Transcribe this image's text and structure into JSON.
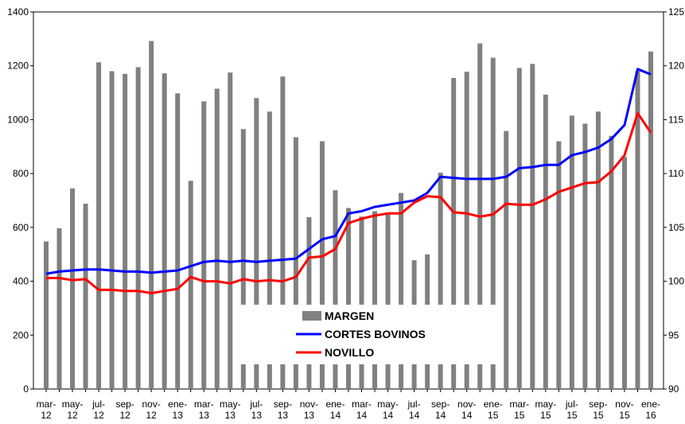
{
  "chart_data": {
    "type": "bar",
    "categories": [
      "mar-12",
      null,
      "may-12",
      null,
      "jul-12",
      null,
      "sep-12",
      null,
      "nov-12",
      null,
      "ene-13",
      null,
      "mar-13",
      null,
      "may-13",
      null,
      "jul-13",
      null,
      "sep-13",
      null,
      "nov-13",
      null,
      "ene-14",
      null,
      "mar-14",
      null,
      "may-14",
      null,
      "jul-14",
      null,
      "sep-14",
      null,
      "nov-14",
      null,
      "ene-15",
      null,
      "mar-15",
      null,
      "may-15",
      null,
      "jul-15",
      null,
      "sep-15",
      null,
      "nov-15",
      null,
      "ene-16"
    ],
    "series": [
      {
        "name": "MARGEN",
        "color": "#808080",
        "values": [
          548,
          597,
          745,
          688,
          1213,
          1180,
          1170,
          1195,
          1292,
          1172,
          1098,
          773,
          1068,
          1115,
          1175,
          965,
          1080,
          1030,
          1160,
          935,
          638,
          920,
          738,
          672,
          640,
          660,
          650,
          728,
          478,
          500,
          803,
          1155,
          1178,
          1283,
          1230,
          958,
          1192,
          1207,
          1093,
          920,
          1015,
          985,
          1030,
          940,
          862,
          1180,
          1253
        ]
      },
      {
        "name": "CORTES BOVINOS",
        "color": "#0000ff",
        "type": "line",
        "axis": "y2",
        "values": [
          100.7,
          100.9,
          101.0,
          101.1,
          101.1,
          101.0,
          100.9,
          100.9,
          100.8,
          100.9,
          101.0,
          101.4,
          101.8,
          101.9,
          101.8,
          101.9,
          101.8,
          101.9,
          102.0,
          102.1,
          103.0,
          103.9,
          104.2,
          106.3,
          106.5,
          106.9,
          107.1,
          107.3,
          107.5,
          108.2,
          109.7,
          109.6,
          109.5,
          109.5,
          109.5,
          109.7,
          110.5,
          110.6,
          110.8,
          110.8,
          111.7,
          112.0,
          112.4,
          113.2,
          114.5,
          119.7,
          119.2
        ]
      },
      {
        "name": "NOVILLO",
        "color": "#ff0000",
        "type": "line",
        "axis": "y2",
        "values": [
          100.3,
          100.3,
          100.1,
          100.2,
          99.2,
          99.2,
          99.1,
          99.1,
          98.9,
          99.1,
          99.3,
          100.4,
          100.0,
          100.0,
          99.8,
          100.2,
          100.0,
          100.1,
          100.0,
          100.4,
          102.2,
          102.3,
          103.0,
          105.4,
          105.8,
          106.1,
          106.3,
          106.3,
          107.3,
          107.9,
          107.8,
          106.4,
          106.3,
          106.0,
          106.2,
          107.2,
          107.1,
          107.1,
          107.6,
          108.3,
          108.7,
          109.1,
          109.2,
          110.2,
          111.7,
          115.6,
          113.8
        ]
      }
    ],
    "ylim": [
      0,
      1400
    ],
    "yticks": [
      0,
      200,
      400,
      600,
      800,
      1000,
      1200,
      1400
    ],
    "y2lim": [
      90,
      125
    ],
    "y2ticks": [
      90,
      95,
      100,
      105,
      110,
      115,
      120,
      125
    ]
  }
}
